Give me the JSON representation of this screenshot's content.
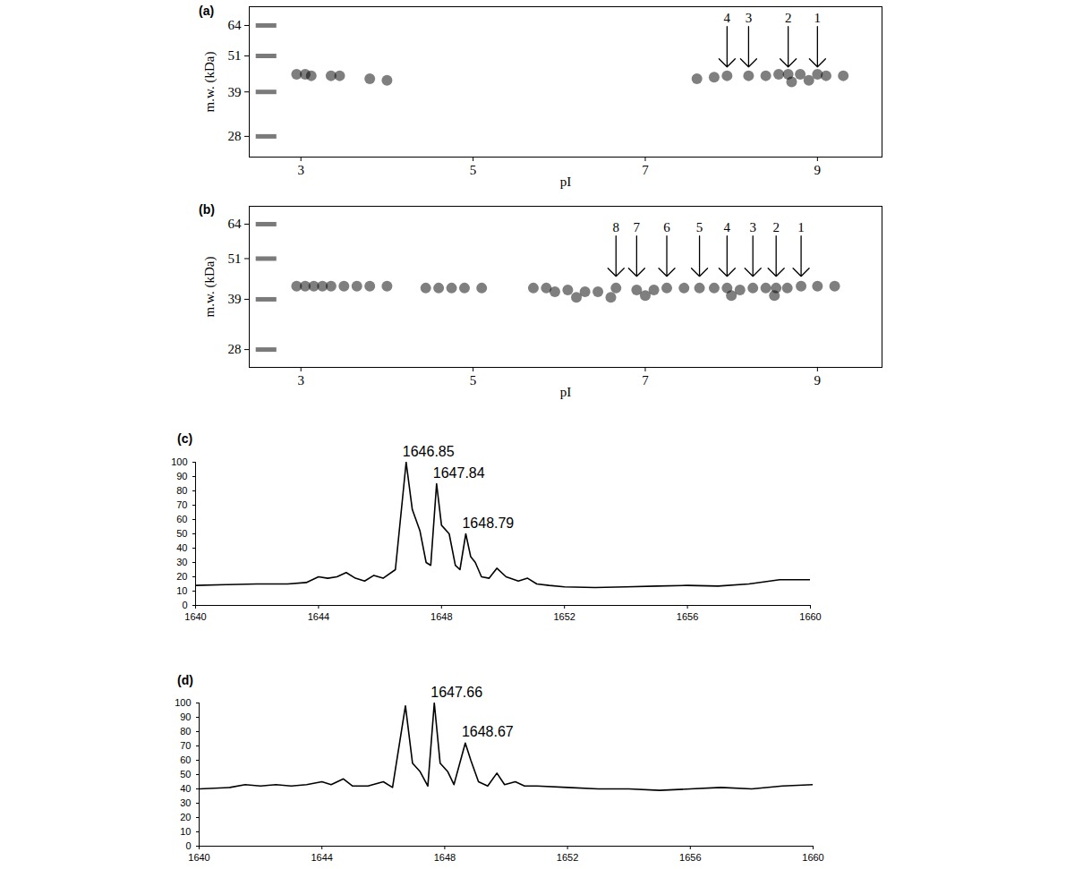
{
  "chart_data": [
    {
      "type": "scatter",
      "title": "(a)",
      "x_label": "pI",
      "y_label": "m.w. (kDa)",
      "xlim": [
        2.4,
        9.75
      ],
      "xticks": [
        3,
        5,
        7,
        9
      ],
      "ylim": [
        24,
        73.6
      ],
      "yticks": [
        28,
        39,
        51,
        64
      ],
      "log": "y",
      "color": "#000000",
      "x": [
        2.95,
        3.05,
        3.12,
        3.35,
        3.45,
        3.8,
        4.0,
        7.6,
        7.8,
        7.95,
        8.2,
        8.4,
        8.55,
        8.66,
        8.8,
        9.0,
        9.1,
        9.3,
        8.7,
        8.9
      ],
      "y": [
        44.5,
        44.5,
        44,
        44,
        44,
        43,
        42.5,
        43,
        43.5,
        44,
        44,
        44,
        44.5,
        44.5,
        44.5,
        44.5,
        44,
        44,
        42,
        42.5
      ],
      "ladder": {
        "x": 2.6,
        "y": [
          64,
          51,
          39,
          28
        ]
      },
      "annotations": [
        {
          "text": "4",
          "x": 7.95,
          "y": 47
        },
        {
          "text": "3",
          "x": 8.2,
          "y": 47
        },
        {
          "text": "2",
          "x": 8.66,
          "y": 47
        },
        {
          "text": "1",
          "x": 9.0,
          "y": 47
        }
      ]
    },
    {
      "type": "scatter",
      "title": "(b)",
      "x_label": "pI",
      "y_label": "m.w. (kDa)",
      "xlim": [
        2.4,
        9.75
      ],
      "xticks": [
        3,
        5,
        7,
        9
      ],
      "ylim": [
        24.9,
        72
      ],
      "yticks": [
        28,
        39,
        51,
        64
      ],
      "log": "y",
      "color": "#000000",
      "x": [
        2.95,
        3.05,
        3.15,
        3.25,
        3.35,
        3.5,
        3.65,
        3.8,
        4.0,
        4.45,
        4.6,
        4.75,
        4.9,
        5.1,
        5.7,
        5.85,
        5.95,
        6.1,
        6.3,
        6.45,
        6.66,
        6.9,
        7.1,
        7.25,
        7.45,
        7.63,
        7.8,
        7.95,
        8.1,
        8.25,
        8.4,
        8.52,
        8.65,
        8.81,
        9.0,
        9.2,
        6.2,
        6.6,
        7.0,
        8.0,
        8.5
      ],
      "y": [
        42.5,
        42.5,
        42.5,
        42.5,
        42.5,
        42.5,
        42.5,
        42.5,
        42.5,
        42,
        42,
        42,
        42,
        42,
        42,
        42,
        41,
        41.5,
        41,
        41,
        42,
        41.5,
        41.5,
        42,
        42,
        42,
        42,
        42,
        41.5,
        42,
        42,
        42,
        42,
        42.5,
        42.5,
        42.5,
        39.5,
        39.5,
        40,
        40,
        40
      ],
      "ladder": {
        "x": 2.6,
        "y": [
          64,
          51,
          39,
          28
        ]
      },
      "annotations": [
        {
          "text": "8",
          "x": 6.66,
          "y": 45.4
        },
        {
          "text": "7",
          "x": 6.9,
          "y": 45.4
        },
        {
          "text": "6",
          "x": 7.25,
          "y": 45.4
        },
        {
          "text": "5",
          "x": 7.63,
          "y": 45.4
        },
        {
          "text": "4",
          "x": 7.95,
          "y": 45.4
        },
        {
          "text": "3",
          "x": 8.25,
          "y": 45.4
        },
        {
          "text": "2",
          "x": 8.52,
          "y": 45.4
        },
        {
          "text": "1",
          "x": 8.81,
          "y": 45.4
        }
      ]
    },
    {
      "type": "line",
      "title": "(c)",
      "xlim": [
        1640,
        1660
      ],
      "xticks": [
        1640,
        1644,
        1648,
        1652,
        1656,
        1660
      ],
      "ylim": [
        0,
        100
      ],
      "yticks": [
        0,
        10,
        20,
        30,
        40,
        50,
        60,
        70,
        80,
        90,
        100
      ],
      "color": "#000000",
      "x": [
        1640,
        1641,
        1642,
        1643,
        1643.6,
        1644,
        1644.3,
        1644.6,
        1644.9,
        1645.2,
        1645.5,
        1645.8,
        1646.1,
        1646.5,
        1646.85,
        1647.05,
        1647.3,
        1647.5,
        1647.65,
        1647.84,
        1648.0,
        1648.25,
        1648.45,
        1648.6,
        1648.79,
        1648.95,
        1649.1,
        1649.3,
        1649.55,
        1649.8,
        1650.1,
        1650.5,
        1650.8,
        1651.1,
        1651.5,
        1652,
        1653,
        1654,
        1655,
        1656,
        1657,
        1658,
        1659,
        1660
      ],
      "values": [
        14,
        14.5,
        15,
        15,
        16,
        20,
        19,
        20,
        23,
        19,
        17,
        21,
        19,
        25,
        100,
        67,
        52,
        30,
        28,
        85,
        56,
        50,
        28,
        25,
        50,
        34,
        30,
        20,
        19,
        26,
        20,
        17,
        19,
        15,
        14,
        13,
        12.5,
        13,
        13.5,
        14,
        13.5,
        15,
        18,
        18
      ],
      "annotations": [
        {
          "text": "1646.85",
          "x": 1646.85,
          "y": 100
        },
        {
          "text": "1647.84",
          "x": 1647.84,
          "y": 85
        },
        {
          "text": "1648.79",
          "x": 1648.79,
          "y": 50
        }
      ]
    },
    {
      "type": "line",
      "title": "(d)",
      "xlim": [
        1640,
        1660
      ],
      "xticks": [
        1640,
        1644,
        1648,
        1652,
        1656,
        1660
      ],
      "ylim": [
        0,
        100
      ],
      "yticks": [
        0,
        10,
        20,
        30,
        40,
        50,
        60,
        70,
        80,
        90,
        100
      ],
      "color": "#000000",
      "x": [
        1640,
        1641,
        1641.5,
        1642,
        1642.5,
        1643,
        1643.5,
        1644,
        1644.3,
        1644.7,
        1645,
        1645.5,
        1646,
        1646.3,
        1646.72,
        1646.95,
        1647.2,
        1647.45,
        1647.66,
        1647.85,
        1648.1,
        1648.3,
        1648.67,
        1648.85,
        1649.1,
        1649.4,
        1649.7,
        1649.95,
        1650.3,
        1650.6,
        1651,
        1652,
        1653,
        1654,
        1655,
        1656,
        1657,
        1658,
        1659,
        1660
      ],
      "values": [
        40,
        41,
        43,
        42,
        43,
        42,
        43,
        45,
        43,
        47,
        42,
        42,
        45,
        41,
        98,
        58,
        52,
        42,
        100,
        58,
        52,
        43,
        72,
        60,
        45,
        42,
        51,
        43,
        45,
        42,
        42,
        41,
        40,
        40,
        39,
        40,
        41,
        40,
        42,
        43
      ],
      "annotations": [
        {
          "text": "1647.66",
          "x": 1647.66,
          "y": 100
        },
        {
          "text": "1648.67",
          "x": 1648.67,
          "y": 72
        }
      ]
    }
  ]
}
